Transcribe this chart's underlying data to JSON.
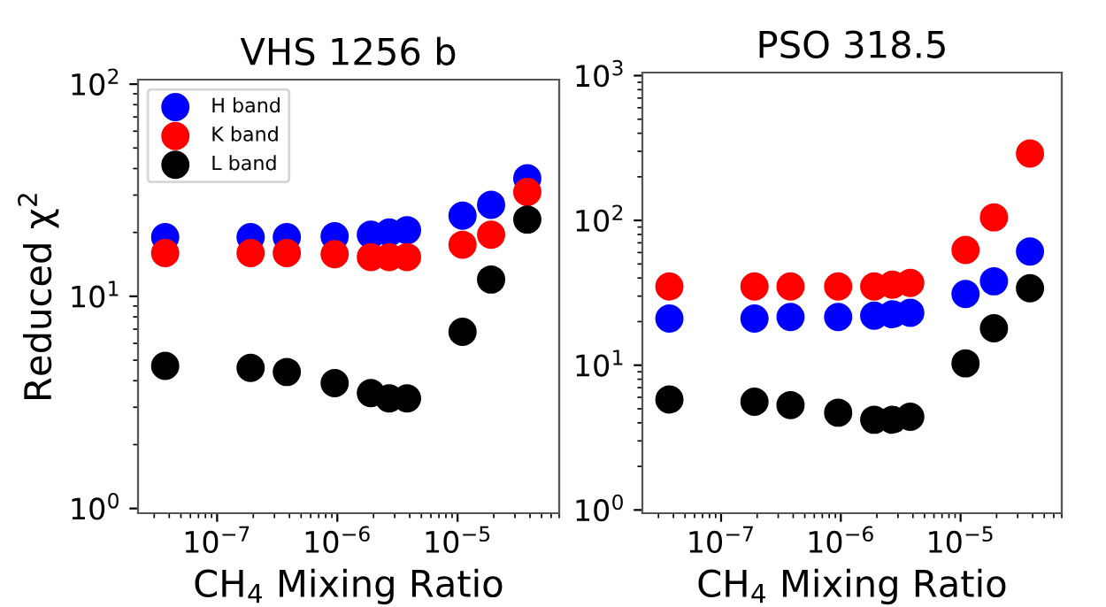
{
  "chart_data": [
    {
      "type": "scatter",
      "title": "VHS 1256 b",
      "xlabel": "CH$_{4}$ Mixing Ratio",
      "ylabel": "Reduced χ$^{2}$",
      "log": "xy",
      "legend": "top left",
      "marker": "circle",
      "grid": false,
      "x": [
        3.7e-08,
        1.9e-07,
        3.8e-07,
        9.5e-07,
        1.9e-06,
        2.7e-06,
        3.8e-06,
        1.1e-05,
        1.9e-05,
        3.8e-05
      ],
      "xlim": [
        2.2e-08,
        7e-05
      ],
      "xticks": [
        {
          "value": 1e-07,
          "label": "10$^{−7}$"
        },
        {
          "value": 1e-06,
          "label": "10$^{−6}$"
        },
        {
          "value": 1e-05,
          "label": "10$^{−5}$"
        }
      ],
      "ylim": [
        0.95,
        105
      ],
      "yticks": [
        {
          "value": 1,
          "label": "10$^{0}$"
        },
        {
          "value": 10,
          "label": "10$^{1}$"
        },
        {
          "value": 100,
          "label": "10$^{2}$"
        }
      ],
      "series": [
        {
          "name": "H band",
          "color": "#0000ff",
          "values": [
            19,
            19,
            19,
            19.2,
            19.5,
            20,
            20.5,
            24,
            27,
            36
          ]
        },
        {
          "name": "K band",
          "color": "#ff0000",
          "values": [
            16,
            16,
            16,
            15.8,
            15.3,
            15.3,
            15.3,
            17.5,
            19.5,
            31
          ]
        },
        {
          "name": "L band",
          "color": "#000000",
          "values": [
            4.7,
            4.6,
            4.4,
            3.9,
            3.5,
            3.3,
            3.3,
            6.8,
            12,
            23
          ]
        }
      ]
    },
    {
      "type": "scatter",
      "title": "PSO 318.5",
      "xlabel": "CH$_{4}$ Mixing Ratio",
      "log": "xy",
      "marker": "circle",
      "grid": false,
      "x": [
        3.7e-08,
        1.9e-07,
        3.8e-07,
        9.5e-07,
        1.9e-06,
        2.7e-06,
        3.8e-06,
        1.1e-05,
        1.9e-05,
        3.8e-05
      ],
      "xlim": [
        2.2e-08,
        7e-05
      ],
      "xticks": [
        {
          "value": 1e-07,
          "label": "10$^{−7}$"
        },
        {
          "value": 1e-06,
          "label": "10$^{−6}$"
        },
        {
          "value": 1e-05,
          "label": "10$^{−5}$"
        }
      ],
      "ylim": [
        0.95,
        1050
      ],
      "yticks": [
        {
          "value": 1,
          "label": "10$^{0}$"
        },
        {
          "value": 10,
          "label": "10$^{1}$"
        },
        {
          "value": 100,
          "label": "10$^{2}$"
        },
        {
          "value": 1000,
          "label": "10$^{3}$"
        }
      ],
      "series": [
        {
          "color": "#0000ff",
          "values": [
            21,
            21,
            21.5,
            21.5,
            22,
            22.5,
            23,
            31,
            38,
            61
          ]
        },
        {
          "color": "#ff0000",
          "values": [
            35,
            35,
            35,
            35,
            35,
            36,
            37,
            62.5,
            105,
            290
          ]
        },
        {
          "color": "#000000",
          "values": [
            5.8,
            5.6,
            5.3,
            4.7,
            4.2,
            4.2,
            4.4,
            10.3,
            18,
            34
          ]
        }
      ]
    }
  ]
}
